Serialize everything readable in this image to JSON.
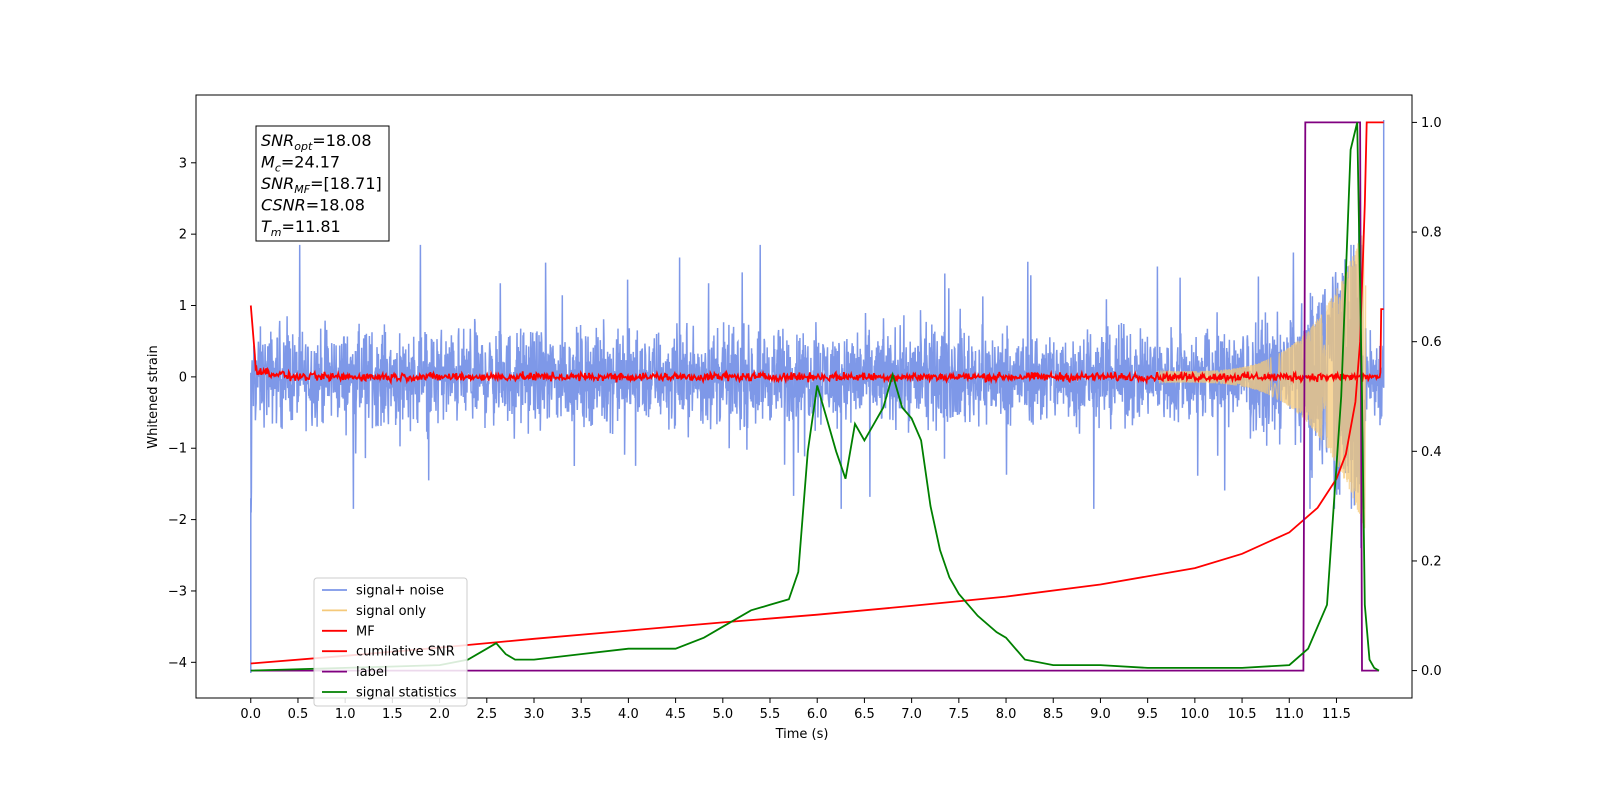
{
  "chart_data": {
    "type": "line",
    "title": "",
    "xlabel": "Time (s)",
    "ylabel": "Whitened strain",
    "xlim": [
      -0.58,
      12.3
    ],
    "ylim": [
      -4.5,
      3.95
    ],
    "y2lim": [
      -0.05,
      1.05
    ],
    "x_ticks": [
      "0.0",
      "0.5",
      "1.0",
      "1.5",
      "2.0",
      "2.5",
      "3.0",
      "3.5",
      "4.0",
      "4.5",
      "5.0",
      "5.5",
      "6.0",
      "6.5",
      "7.0",
      "7.5",
      "8.0",
      "8.5",
      "9.0",
      "9.5",
      "10.0",
      "10.5",
      "11.0",
      "11.5"
    ],
    "y_ticks": [
      "3",
      "2",
      "1",
      "0",
      "−1",
      "−2",
      "−3",
      "−4"
    ],
    "y2_ticks": [
      "1.0",
      "0.8",
      "0.6",
      "0.4",
      "0.2",
      "0.0"
    ],
    "legend": {
      "position": "lower-left",
      "entries": [
        "signal+ noise",
        "signal only",
        "MF",
        "cumilative SNR",
        "label",
        "signal statistics"
      ]
    },
    "annotation": [
      {
        "italic": "SNR",
        "sub": "opt",
        "rest": "=18.08"
      },
      {
        "italic": "M",
        "sub": "c",
        "rest": "=24.17"
      },
      {
        "italic": "SNR",
        "sub": "MF",
        "rest": "=[18.71]"
      },
      {
        "italic": "CSNR",
        "sub": "",
        "rest": "=18.08"
      },
      {
        "italic": "T",
        "sub": "m",
        "rest": "=11.81"
      }
    ],
    "series": [
      {
        "name": "signal+ noise",
        "axis": "left",
        "color": "#7b96e8",
        "note": "noise envelope approx ±1.8 around 0, spike to 3.6 at t=12.0"
      },
      {
        "name": "signal only",
        "axis": "left",
        "color": "#f5c97a",
        "note": "chirp growing from ~10.0 s, peak ~2.2 near 11.75 s"
      },
      {
        "name": "MF",
        "axis": "left",
        "color": "#ff0000",
        "note": "near zero, starts at 1.0"
      },
      {
        "name": "cumilative SNR",
        "axis": "right",
        "color": "#ff0000",
        "x": [
          0.0,
          1.0,
          2.0,
          3.0,
          4.0,
          5.0,
          6.0,
          7.0,
          8.0,
          9.0,
          10.0,
          10.5,
          11.0,
          11.3,
          11.5,
          11.6,
          11.7,
          11.75,
          11.8,
          11.82,
          12.0
        ],
        "y": [
          0.013,
          0.027,
          0.042,
          0.058,
          0.073,
          0.088,
          0.102,
          0.118,
          0.135,
          0.157,
          0.187,
          0.213,
          0.252,
          0.297,
          0.35,
          0.395,
          0.49,
          0.6,
          0.85,
          1.0,
          1.0
        ]
      },
      {
        "name": "label",
        "axis": "right",
        "color": "#800080",
        "x": [
          0.0,
          11.15,
          11.17,
          11.75,
          11.77,
          11.95
        ],
        "y": [
          0.0,
          0.0,
          1.0,
          1.0,
          0.0,
          0.0
        ]
      },
      {
        "name": "signal statistics",
        "axis": "right",
        "color": "#008000",
        "x": [
          0.0,
          1.0,
          2.0,
          2.3,
          2.5,
          2.6,
          2.7,
          2.8,
          3.0,
          3.5,
          4.0,
          4.5,
          4.8,
          5.0,
          5.3,
          5.5,
          5.7,
          5.8,
          5.9,
          6.0,
          6.1,
          6.2,
          6.3,
          6.4,
          6.5,
          6.6,
          6.7,
          6.8,
          6.9,
          7.0,
          7.1,
          7.2,
          7.3,
          7.4,
          7.5,
          7.7,
          7.9,
          8.0,
          8.2,
          8.5,
          9.0,
          9.5,
          10.0,
          10.5,
          11.0,
          11.2,
          11.4,
          11.55,
          11.65,
          11.72,
          11.77,
          11.8,
          11.85,
          11.9,
          11.95
        ],
        "y": [
          0.0,
          0.005,
          0.01,
          0.02,
          0.04,
          0.05,
          0.03,
          0.02,
          0.02,
          0.03,
          0.04,
          0.04,
          0.06,
          0.08,
          0.11,
          0.12,
          0.13,
          0.18,
          0.4,
          0.52,
          0.46,
          0.4,
          0.35,
          0.45,
          0.42,
          0.45,
          0.48,
          0.54,
          0.48,
          0.46,
          0.42,
          0.3,
          0.22,
          0.17,
          0.14,
          0.1,
          0.07,
          0.06,
          0.02,
          0.01,
          0.01,
          0.005,
          0.005,
          0.005,
          0.01,
          0.04,
          0.12,
          0.5,
          0.95,
          1.0,
          0.5,
          0.12,
          0.02,
          0.005,
          0.0
        ]
      }
    ]
  }
}
